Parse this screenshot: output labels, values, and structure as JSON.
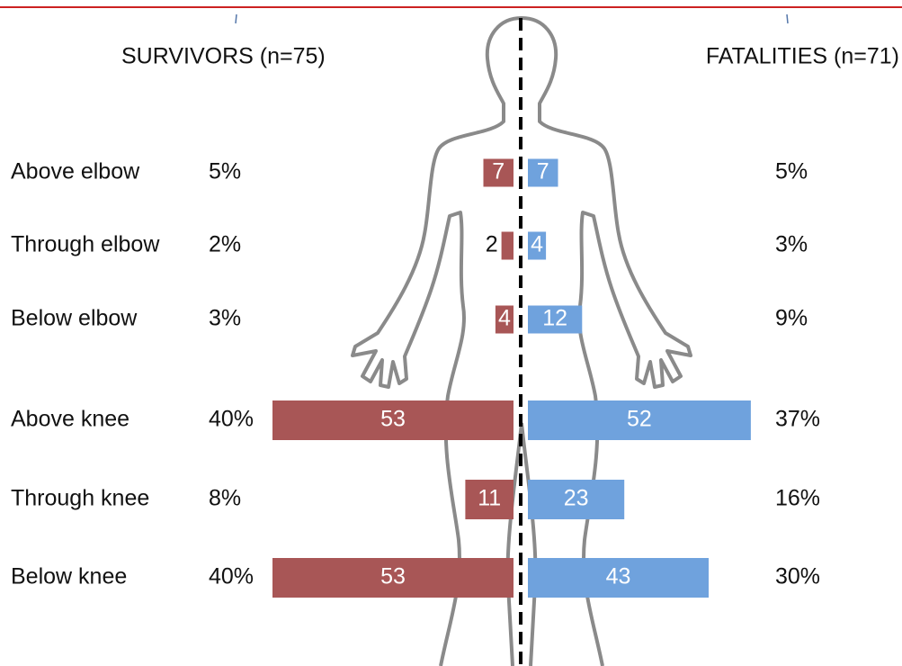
{
  "chart_data": {
    "type": "butterfly",
    "categories": [
      "Above elbow",
      "Through elbow",
      "Below elbow",
      "Above knee",
      "Through knee",
      "Below knee"
    ],
    "series": [
      {
        "name": "SURVIVORS (n=75)",
        "color": "#a85656",
        "values": [
          5,
          2,
          3,
          40,
          8,
          40
        ],
        "value_labels": [
          "5%",
          "2%",
          "3%",
          "40%",
          "8%",
          "40%"
        ],
        "counts": [
          7,
          2,
          4,
          53,
          11,
          53
        ]
      },
      {
        "name": "FATALITIES (n=71)",
        "color": "#6fa2dd",
        "values": [
          5,
          3,
          9,
          37,
          16,
          30
        ],
        "value_labels": [
          "5%",
          "3%",
          "9%",
          "37%",
          "16%",
          "30%"
        ],
        "counts": [
          7,
          4,
          12,
          52,
          23,
          43
        ]
      }
    ]
  }
}
